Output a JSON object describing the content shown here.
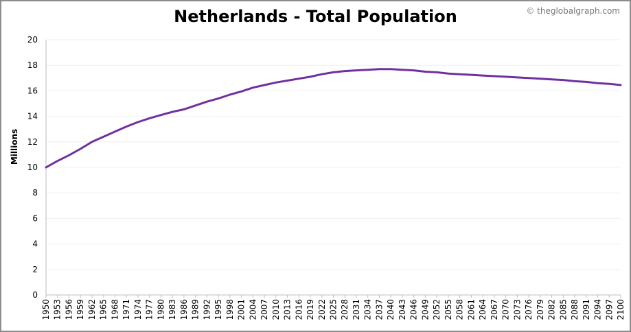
{
  "header": {
    "title": "Netherlands - Total Population",
    "credit": "© theglobalgraph.com"
  },
  "chart_data": {
    "type": "line",
    "title": "Netherlands - Total Population",
    "xlabel": "",
    "ylabel": "Millions",
    "ylim": [
      0,
      20
    ],
    "yticks": [
      "0",
      "2",
      "4",
      "6",
      "8",
      "10",
      "12",
      "14",
      "16",
      "18",
      "20"
    ],
    "xlim": [
      1950,
      2100
    ],
    "xticks": [
      "1950",
      "1953",
      "1956",
      "1959",
      "1962",
      "1965",
      "1968",
      "1971",
      "1974",
      "1977",
      "1980",
      "1983",
      "1986",
      "1989",
      "1992",
      "1995",
      "1998",
      "2001",
      "2004",
      "2007",
      "2010",
      "2013",
      "2016",
      "2019",
      "2022",
      "2025",
      "2028",
      "2031",
      "2034",
      "2037",
      "2040",
      "2043",
      "2046",
      "2049",
      "2052",
      "2055",
      "2058",
      "2061",
      "2064",
      "2067",
      "2070",
      "2073",
      "2076",
      "2079",
      "2082",
      "2085",
      "2088",
      "2091",
      "2094",
      "2097",
      "2100"
    ],
    "grid": true,
    "series_color": "#7030a0",
    "series": [
      {
        "name": "",
        "x": [
          1950,
          1953,
          1956,
          1959,
          1962,
          1965,
          1968,
          1971,
          1974,
          1977,
          1980,
          1983,
          1986,
          1989,
          1992,
          1995,
          1998,
          2001,
          2004,
          2007,
          2010,
          2013,
          2016,
          2019,
          2022,
          2025,
          2028,
          2031,
          2034,
          2037,
          2040,
          2043,
          2046,
          2049,
          2052,
          2055,
          2058,
          2061,
          2064,
          2067,
          2070,
          2073,
          2076,
          2079,
          2082,
          2085,
          2088,
          2091,
          2094,
          2097,
          2100
        ],
        "values": [
          10.0,
          10.5,
          10.95,
          11.45,
          12.0,
          12.4,
          12.8,
          13.2,
          13.55,
          13.85,
          14.1,
          14.35,
          14.55,
          14.85,
          15.15,
          15.4,
          15.7,
          15.95,
          16.25,
          16.45,
          16.65,
          16.8,
          16.95,
          17.1,
          17.3,
          17.45,
          17.55,
          17.6,
          17.65,
          17.7,
          17.7,
          17.65,
          17.6,
          17.5,
          17.45,
          17.35,
          17.3,
          17.25,
          17.2,
          17.15,
          17.1,
          17.05,
          17.0,
          16.95,
          16.9,
          16.85,
          16.75,
          16.7,
          16.6,
          16.55,
          16.45
        ]
      }
    ]
  }
}
